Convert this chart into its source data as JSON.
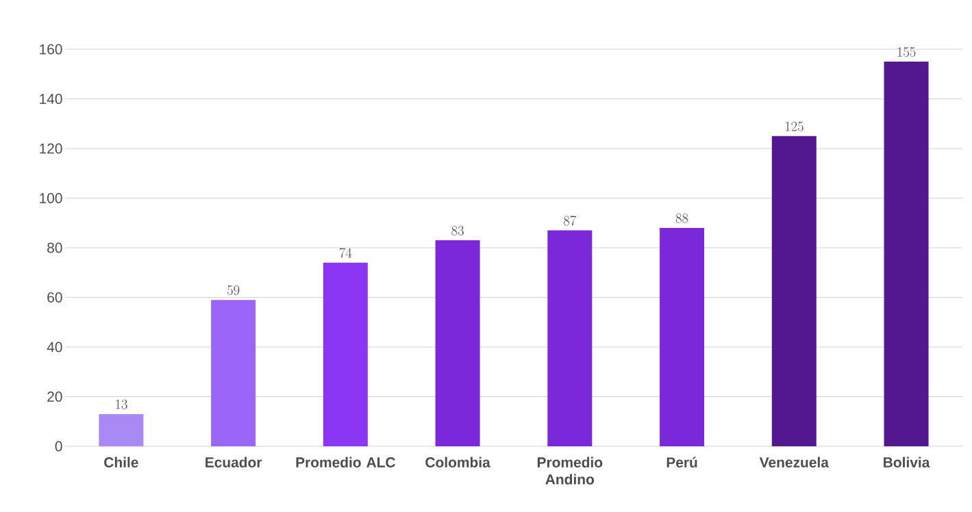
{
  "chart_data": {
    "type": "bar",
    "categories": [
      "Chile",
      "Ecuador",
      "Promedio ALC",
      "Colombia",
      "Promedio Andino",
      "Perú",
      "Venezuela",
      "Bolivia"
    ],
    "values": [
      13,
      59,
      74,
      83,
      87,
      88,
      125,
      155
    ],
    "colors": [
      "#a98af5",
      "#9b66f7",
      "#8b35f5",
      "#7a28d9",
      "#7a28d9",
      "#7a28d9",
      "#531890",
      "#531890"
    ],
    "ylim": [
      0,
      160
    ],
    "yticks": [
      0,
      20,
      40,
      60,
      80,
      100,
      120,
      140,
      160
    ],
    "grid": "y",
    "data_labels": true
  }
}
